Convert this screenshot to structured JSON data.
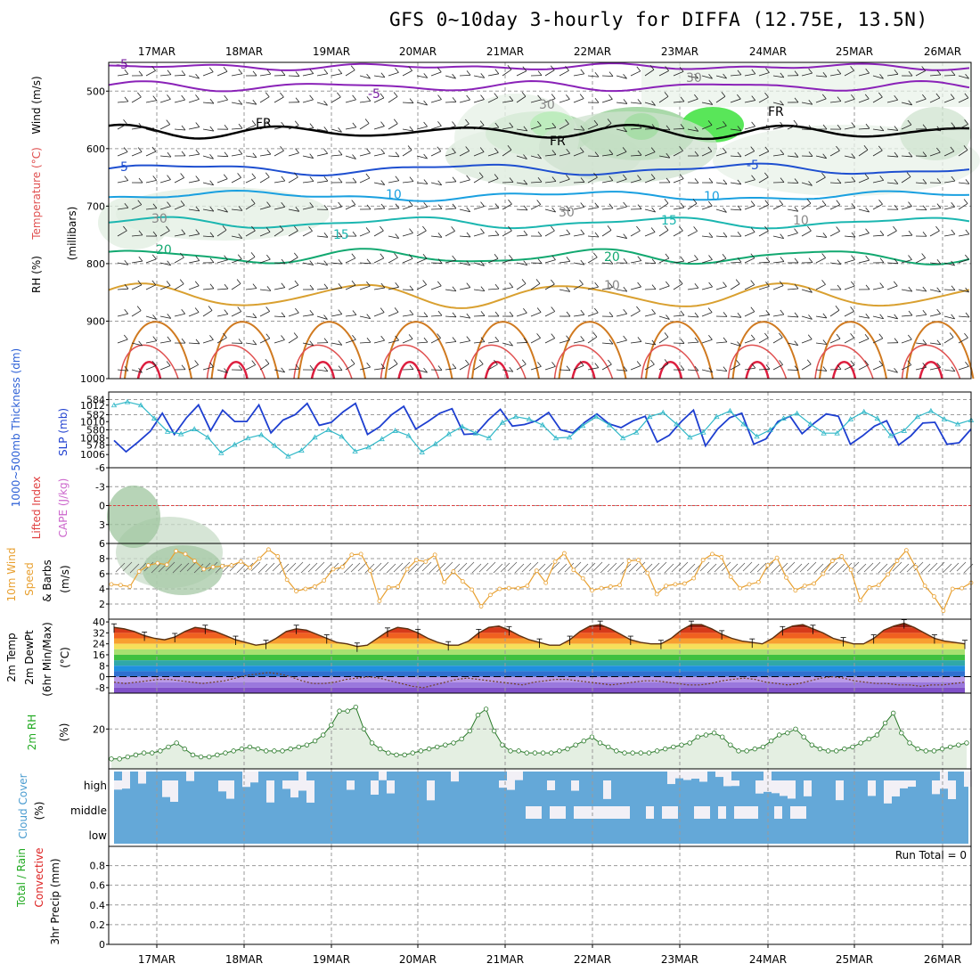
{
  "title": "GFS 0~10day 3-hourly for DIFFA (12.75E, 13.5N)",
  "dates": [
    "17MAR",
    "18MAR",
    "19MAR",
    "20MAR",
    "21MAR",
    "22MAR",
    "23MAR",
    "24MAR",
    "25MAR",
    "26MAR"
  ],
  "colors": {
    "grid": "#999999",
    "frame": "#000000"
  },
  "chart_data": [
    {
      "id": "upper-air",
      "type": "heatmap",
      "ylabel_parts": [
        "Wind (m/s)",
        "Temperature (°C)",
        "RH (%)",
        "(millibars)"
      ],
      "ylim": [
        1000,
        450
      ],
      "yticks": [
        500,
        600,
        700,
        800,
        900,
        1000
      ],
      "isotherm_labels": [
        {
          "text": "-5",
          "color": "#7a1fa2"
        },
        {
          "text": "-5",
          "color": "#7a1fa2"
        },
        {
          "text": "FR",
          "color": "#000000"
        },
        {
          "text": "FR",
          "color": "#000000"
        },
        {
          "text": "FR",
          "color": "#000000"
        },
        {
          "text": "-5",
          "color": "#1e4fd0"
        },
        {
          "text": "-5",
          "color": "#1e4fd0"
        },
        {
          "text": "10",
          "color": "#1aa0e0"
        },
        {
          "text": "10",
          "color": "#1aa0e0"
        },
        {
          "text": "15",
          "color": "#1bb6b0"
        },
        {
          "text": "15",
          "color": "#1bb6b0"
        },
        {
          "text": "20",
          "color": "#12a870"
        },
        {
          "text": "20",
          "color": "#12a870"
        },
        {
          "text": "30",
          "color": "#888888"
        },
        {
          "text": "30",
          "color": "#888888"
        },
        {
          "text": "30",
          "color": "#888888"
        },
        {
          "text": "30",
          "color": "#888888"
        },
        {
          "text": "10",
          "color": "#888888"
        },
        {
          "text": "10",
          "color": "#888888"
        }
      ]
    },
    {
      "id": "thickness-slp",
      "type": "line",
      "ylabel_left": "1000~500mb Thickness (dm)",
      "ylabel_right": "SLP (mb)",
      "yticks_left": [
        578,
        580,
        582,
        584
      ],
      "yticks_right": [
        1006,
        1008,
        1010,
        1012
      ],
      "series": [
        {
          "values": [
            578.6,
            577.1,
            578.4,
            579.8,
            582.2,
            579.4,
            581.6,
            583.3,
            579.9,
            582.6,
            581.1,
            581.1,
            583.3,
            579.6,
            581.3,
            582.0,
            583.5,
            580.6,
            581.0,
            582.4,
            583.5,
            579.4,
            580.4,
            582.0,
            583.1,
            580.1,
            581.1,
            582.2,
            582.8,
            579.4,
            579.5,
            581.3,
            582.7,
            580.5,
            580.7,
            581.2,
            582.3,
            580.0,
            579.6,
            581.0,
            582.1,
            580.8,
            580.3,
            581.2,
            581.8,
            578.4,
            579.3,
            581.1,
            582.6,
            577.9,
            580.1,
            581.6,
            582.2,
            578.1,
            578.8,
            581.1,
            581.8,
            579.5,
            580.9,
            582.1,
            581.8,
            578.1,
            579.2,
            580.5,
            581.2,
            578.0,
            579.2,
            580.9,
            581.0,
            578.1,
            578.3,
            580.1
          ]
        },
        {
          "values": [
            1012.0,
            1012.4,
            1012.0,
            1010.4,
            1008.8,
            1008.5,
            1009.1,
            1008.1,
            1006.2,
            1007.2,
            1008.0,
            1008.4,
            1007.1,
            1005.8,
            1006.5,
            1008.1,
            1009.0,
            1008.2,
            1006.4,
            1006.9,
            1007.9,
            1008.9,
            1008.3,
            1006.3,
            1007.3,
            1008.5,
            1009.4,
            1008.6,
            1008.0,
            1009.9,
            1010.6,
            1010.3,
            1009.6,
            1008.0,
            1008.1,
            1009.5,
            1010.6,
            1009.6,
            1008.0,
            1008.7,
            1010.6,
            1011.1,
            1009.7,
            1008.1,
            1008.7,
            1010.6,
            1011.3,
            1009.7,
            1008.2,
            1009.0,
            1010.4,
            1011.0,
            1009.7,
            1008.6,
            1008.6,
            1010.3,
            1011.2,
            1010.4,
            1008.3,
            1008.9,
            1010.6,
            1011.3,
            1010.3,
            1009.7,
            1010.2
          ]
        }
      ]
    },
    {
      "id": "cape-li",
      "type": "line",
      "ylabel_left": "Lifted Index",
      "ylabel_right": "CAPE (J/kg)",
      "yticks": [
        -6,
        -3,
        0,
        3,
        6
      ],
      "series": []
    },
    {
      "id": "wind10m",
      "type": "line",
      "ylabel_parts": [
        "10m Wind",
        "Speed",
        "& Barbs",
        "(m/s)"
      ],
      "yticks": [
        2,
        4,
        6,
        8
      ],
      "series": [
        {
          "values": [
            4.6,
            4.5,
            4.3,
            6.3,
            7.1,
            7.4,
            7.2,
            9.0,
            8.6,
            7.7,
            6.6,
            6.9,
            7.0,
            7.1,
            7.6,
            6.8,
            8.0,
            9.2,
            8.3,
            5.2,
            3.7,
            4.0,
            4.3,
            5.1,
            6.6,
            6.9,
            8.5,
            8.6,
            6.4,
            2.4,
            4.2,
            4.3,
            6.6,
            7.8,
            7.6,
            8.5,
            4.9,
            6.3,
            5.0,
            3.9,
            1.7,
            3.2,
            4.0,
            4.1,
            4.1,
            4.4,
            6.4,
            4.8,
            7.6,
            8.7,
            6.5,
            5.4,
            3.8,
            4.1,
            4.3,
            4.5,
            7.7,
            7.8,
            6.1,
            3.3,
            4.4,
            4.6,
            4.7,
            5.4,
            7.8,
            8.6,
            8.2,
            5.6,
            4.1,
            4.6,
            4.9,
            7.1,
            8.1,
            5.5,
            3.8,
            4.4,
            4.7,
            6.0,
            7.7,
            8.3,
            6.5,
            2.5,
            4.2,
            4.5,
            5.9,
            7.7,
            9.1,
            6.9,
            4.4,
            3.0,
            1.1,
            4.0,
            4.1,
            4.8
          ]
        }
      ]
    },
    {
      "id": "temp2m",
      "type": "area",
      "ylabel_parts": [
        "2m Temp",
        "2m DewPt",
        "(6hr Min/Max)",
        "(°C)"
      ],
      "yticks": [
        40,
        32,
        24,
        16,
        8,
        0,
        -8
      ],
      "series": [
        {
          "name": "temp",
          "values": [
            36,
            35,
            33,
            30,
            28,
            27,
            29,
            33,
            36,
            35,
            33,
            30,
            27,
            25,
            23,
            24,
            28,
            33,
            35,
            34,
            31,
            28,
            25,
            24,
            22,
            23,
            28,
            33,
            36,
            35,
            32,
            28,
            25,
            23,
            23,
            26,
            32,
            36,
            37,
            34,
            30,
            27,
            25,
            23,
            23,
            27,
            33,
            37,
            38,
            35,
            31,
            27,
            25,
            24,
            24,
            28,
            34,
            38,
            38,
            35,
            31,
            28,
            26,
            25,
            24,
            28,
            34,
            37,
            38,
            35,
            32,
            28,
            26,
            24,
            24,
            28,
            34,
            37,
            39,
            36,
            32,
            28,
            26,
            25,
            24
          ]
        },
        {
          "name": "dewpoint",
          "values": [
            -4,
            -5,
            -4,
            -3,
            -2,
            -2,
            -3,
            -4,
            -5,
            -4,
            -3,
            -1,
            1,
            2,
            3,
            2,
            0,
            -3,
            -5,
            -5,
            -4,
            -2,
            -1,
            0,
            -1,
            -3,
            -5,
            -7,
            -8,
            -6,
            -4,
            -2,
            -1,
            -2,
            -3,
            -4,
            -5,
            -6,
            -4,
            -3,
            -2,
            -2,
            -3,
            -4,
            -5,
            -6,
            -5,
            -4,
            -3,
            -3,
            -4,
            -5,
            -6,
            -6,
            -5,
            -3,
            -2,
            -1,
            -2,
            -4,
            -5,
            -6,
            -5,
            -3,
            -1,
            0,
            -1,
            -3,
            -4,
            -5,
            -5,
            -6,
            -6,
            -7,
            -6,
            -6,
            -5,
            -4
          ]
        }
      ]
    },
    {
      "id": "rh2m",
      "type": "area",
      "ylabel_parts": [
        "2m RH",
        "(%)"
      ],
      "yticks": [
        20
      ],
      "series": [
        {
          "values": [
            5,
            5,
            6,
            7,
            8,
            8,
            9,
            11,
            13,
            10,
            7,
            6,
            6,
            7,
            8,
            9,
            10,
            11,
            10,
            9,
            9,
            9,
            10,
            11,
            12,
            14,
            17,
            22,
            29,
            29,
            31,
            20,
            13,
            10,
            8,
            7,
            7,
            8,
            9,
            10,
            11,
            12,
            13,
            15,
            19,
            27,
            30,
            19,
            12,
            9,
            9,
            8,
            8,
            8,
            8,
            9,
            10,
            12,
            14,
            16,
            13,
            11,
            9,
            8,
            8,
            8,
            8,
            9,
            10,
            11,
            12,
            13,
            16,
            17,
            18,
            16,
            12,
            9,
            9,
            10,
            11,
            14,
            17,
            18,
            20,
            16,
            12,
            10,
            9,
            9,
            10,
            11,
            13,
            15,
            17,
            23,
            28,
            18,
            13,
            10,
            9,
            9,
            10,
            11,
            12,
            13
          ]
        }
      ]
    },
    {
      "id": "cloud",
      "type": "heatmap",
      "ylabel_parts": [
        "Cloud Cover",
        "(%)"
      ],
      "levels": [
        "high",
        "middle",
        "low"
      ]
    },
    {
      "id": "precip",
      "type": "bar",
      "ylabel_parts": [
        "Total / Rain",
        "Convective",
        "3hr Precip (mm)"
      ],
      "ylabel_colors": [
        "#22aa22",
        "#dd2222",
        "#000000"
      ],
      "yticks": [
        0,
        0.2,
        0.4,
        0.6,
        0.8
      ],
      "run_total": "Run Total = 0",
      "values": []
    }
  ]
}
